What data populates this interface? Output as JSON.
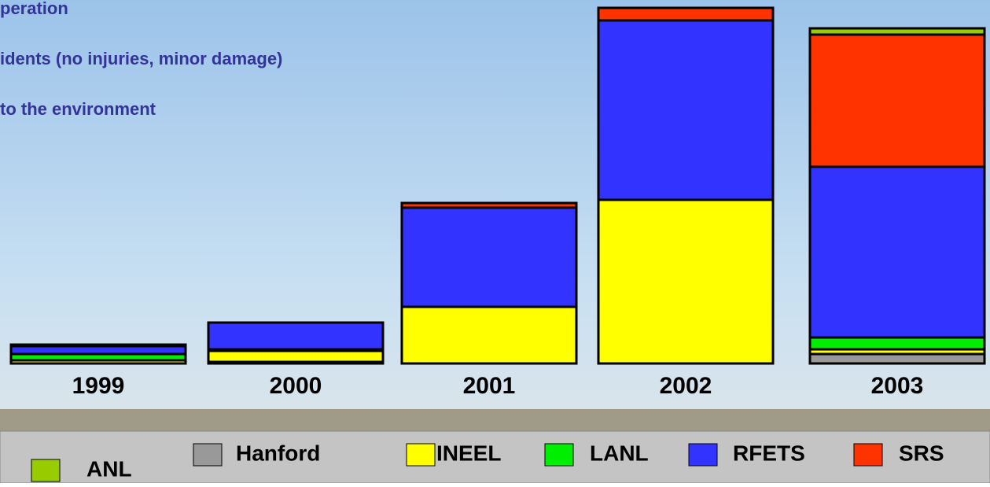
{
  "chart_data": {
    "type": "stacked_bar",
    "annotations": [
      "peration",
      "idents (no injuries, minor damage)",
      "to the environment"
    ],
    "categories": [
      "1999",
      "2000",
      "2001",
      "2002",
      "2003"
    ],
    "series": [
      {
        "name": "Hanford",
        "color": "#999999",
        "values": [
          0,
          2,
          0,
          0,
          12
        ]
      },
      {
        "name": "INEEL",
        "color": "#ffff00",
        "values": [
          4,
          14,
          72,
          208,
          6
        ]
      },
      {
        "name": "LANL",
        "color": "#00ee00",
        "values": [
          8,
          2,
          0,
          0,
          15
        ]
      },
      {
        "name": "RFETS",
        "color": "#3333ff",
        "values": [
          10,
          34,
          126,
          228,
          217
        ]
      },
      {
        "name": "SRS",
        "color": "#ff3300",
        "values": [
          0,
          0,
          6,
          16,
          168
        ]
      },
      {
        "name": "ANL",
        "color": "#99cc00",
        "values": [
          2,
          0,
          0,
          0,
          8
        ]
      }
    ],
    "legend_order": [
      5,
      0,
      1,
      2,
      3,
      4
    ],
    "ylim": [
      0,
      450
    ]
  }
}
